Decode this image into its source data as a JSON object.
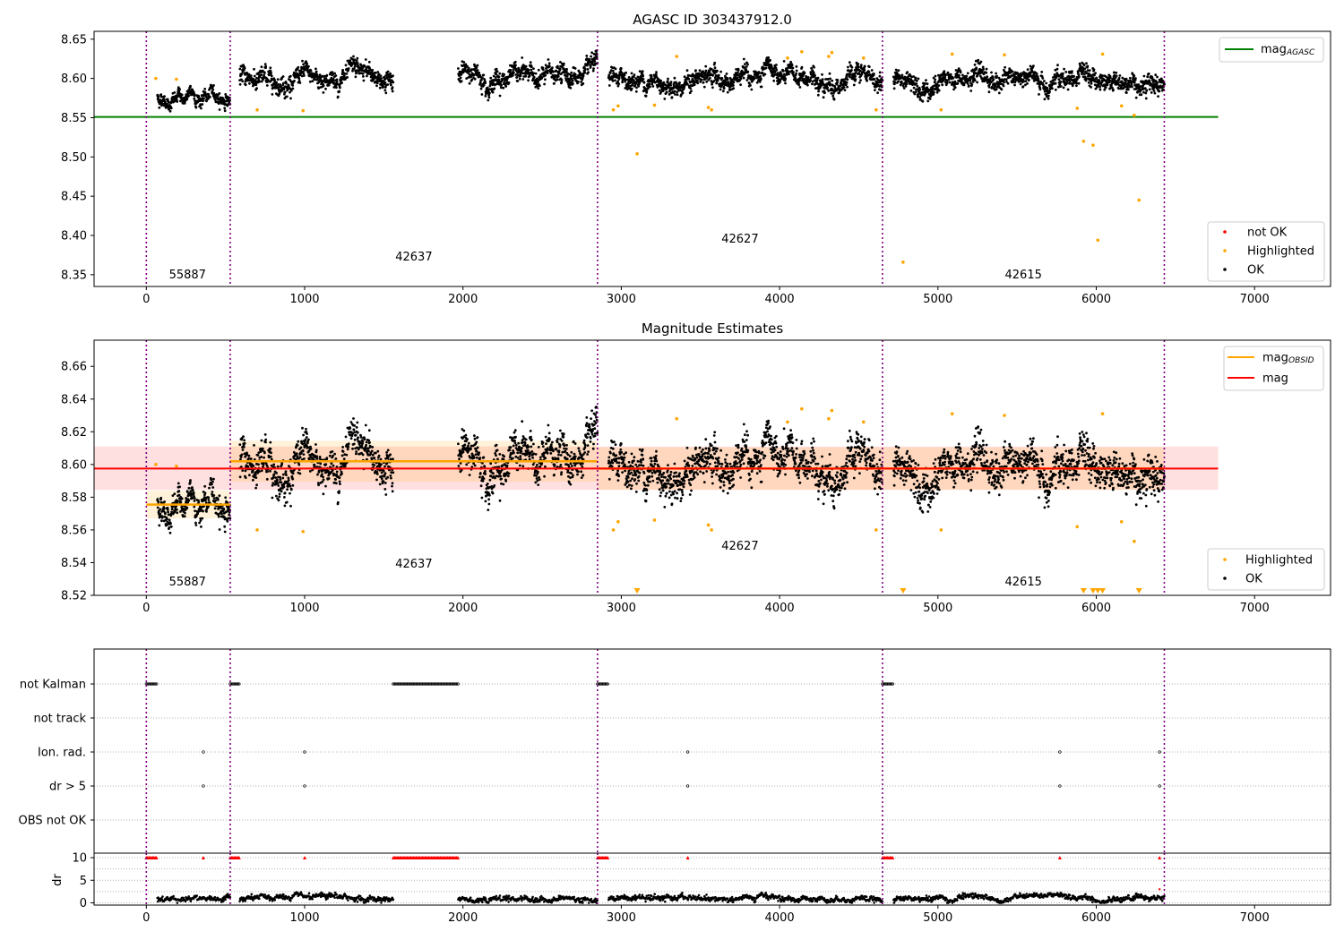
{
  "chart_data": [
    {
      "type": "scatter",
      "title": "AGASC ID 303437912.0",
      "xlim": [
        -330,
        7480
      ],
      "ylim": [
        8.335,
        8.66
      ],
      "x_ticks": [
        0,
        1000,
        2000,
        3000,
        4000,
        5000,
        6000,
        7000
      ],
      "y_ticks": [
        8.35,
        8.4,
        8.45,
        8.5,
        8.55,
        8.6,
        8.65
      ],
      "y_tick_format": 2,
      "reference_line": {
        "name": "mag_AGASC",
        "y": 8.551,
        "x": [
          -330,
          6770
        ],
        "color": "#008000"
      },
      "obsid_boundaries": [
        0,
        530,
        2850,
        4650,
        6430
      ],
      "obsid_labels": [
        {
          "text": "55887",
          "x": 260,
          "y": 8.345
        },
        {
          "text": "42637",
          "x": 1690,
          "y": 8.368
        },
        {
          "text": "42627",
          "x": 3750,
          "y": 8.391
        },
        {
          "text": "42615",
          "x": 5540,
          "y": 8.345
        }
      ],
      "legend": {
        "position": "upper-right",
        "line_entries": [
          {
            "label": "mag",
            "sub": "AGASC",
            "color": "#008000"
          }
        ],
        "marker_entries": [
          {
            "label": "not OK",
            "color": "#ff0000"
          },
          {
            "label": "Highlighted",
            "color": "#ffa500"
          },
          {
            "label": "OK",
            "color": "#000000"
          }
        ],
        "marker_position": "lower-right"
      },
      "series": [
        {
          "name": "OK",
          "color": "#000000",
          "note": "dense measurements"
        },
        {
          "name": "Highlighted",
          "color": "#ffa500",
          "points": [
            [
              60,
              8.6
            ],
            [
              190,
              8.599
            ],
            [
              700,
              8.56
            ],
            [
              990,
              8.559
            ],
            [
              2950,
              8.56
            ],
            [
              2980,
              8.565
            ],
            [
              3100,
              8.504
            ],
            [
              3210,
              8.566
            ],
            [
              3350,
              8.628
            ],
            [
              3550,
              8.563
            ],
            [
              3570,
              8.56
            ],
            [
              4050,
              8.626
            ],
            [
              4140,
              8.634
            ],
            [
              4310,
              8.628
            ],
            [
              4330,
              8.633
            ],
            [
              4530,
              8.626
            ],
            [
              4610,
              8.56
            ],
            [
              4780,
              8.366
            ],
            [
              5020,
              8.56
            ],
            [
              5090,
              8.631
            ],
            [
              5420,
              8.63
            ],
            [
              5880,
              8.562
            ],
            [
              5920,
              8.52
            ],
            [
              5980,
              8.515
            ],
            [
              6010,
              8.394
            ],
            [
              6040,
              8.631
            ],
            [
              6160,
              8.565
            ],
            [
              6240,
              8.553
            ],
            [
              6270,
              8.445
            ]
          ]
        }
      ]
    },
    {
      "type": "scatter",
      "title": "Magnitude Estimates",
      "xlim": [
        -330,
        7480
      ],
      "ylim": [
        8.52,
        8.676
      ],
      "x_ticks": [
        0,
        1000,
        2000,
        3000,
        4000,
        5000,
        6000,
        7000
      ],
      "y_ticks": [
        8.52,
        8.54,
        8.56,
        8.58,
        8.6,
        8.62,
        8.64,
        8.66
      ],
      "y_tick_format": 2,
      "mag": {
        "y": 8.5975,
        "band": [
          8.5845,
          8.611
        ],
        "x": [
          -330,
          6770
        ],
        "color": "#ff0000"
      },
      "mag_obsid": [
        {
          "x": [
            0,
            530
          ],
          "y": 8.5755,
          "band": [
            8.567,
            8.584
          ]
        },
        {
          "x": [
            530,
            2850
          ],
          "y": 8.602,
          "band": [
            8.5895,
            8.6145
          ]
        },
        {
          "x": [
            2850,
            4650
          ],
          "y": 8.5975,
          "band": [
            8.5845,
            8.6105
          ]
        },
        {
          "x": [
            4650,
            6430
          ],
          "y": 8.5975,
          "band": [
            8.5845,
            8.6105
          ]
        }
      ],
      "obsid_boundaries": [
        0,
        530,
        2850,
        4650,
        6430
      ],
      "obsid_labels": [
        {
          "text": "55887",
          "x": 260,
          "y": 8.526
        },
        {
          "text": "42637",
          "x": 1690,
          "y": 8.537
        },
        {
          "text": "42627",
          "x": 3750,
          "y": 8.548
        },
        {
          "text": "42615",
          "x": 5540,
          "y": 8.526
        }
      ],
      "clipped_markers_x": [
        3100,
        4780,
        5920,
        5980,
        6010,
        6040,
        6270
      ],
      "legend": {
        "position": "upper-right",
        "line_entries": [
          {
            "label": "mag",
            "sub": "OBSID",
            "color": "#ffa500"
          },
          {
            "label": "mag",
            "sub": "",
            "color": "#ff0000"
          }
        ],
        "marker_entries": [
          {
            "label": "Highlighted",
            "color": "#ffa500"
          },
          {
            "label": "OK",
            "color": "#000000"
          }
        ],
        "marker_position": "lower-right"
      }
    },
    {
      "type": "scatter",
      "xlim": [
        -330,
        7480
      ],
      "categories": [
        "not Kalman",
        "not track",
        "Ion. rad.",
        "dr > 5",
        "OBS not OK"
      ],
      "flags": {
        "not Kalman": [
          [
            0,
            70
          ],
          [
            530,
            590
          ],
          [
            1560,
            1970
          ],
          [
            2850,
            2920
          ],
          [
            4650,
            4720
          ]
        ],
        "not track": [],
        "Ion. rad.": [
          360,
          1000,
          3420,
          5770,
          6400
        ],
        "dr > 5": [
          360,
          1000,
          3420,
          5770,
          6400
        ],
        "OBS not OK": []
      },
      "obsid_boundaries": [
        0,
        530,
        2850,
        4650,
        6430
      ]
    },
    {
      "type": "scatter",
      "ylabel": "dr",
      "xlim": [
        -330,
        7480
      ],
      "ylim": [
        -0.5,
        11
      ],
      "x_ticks": [
        0,
        1000,
        2000,
        3000,
        4000,
        5000,
        6000,
        7000
      ],
      "y_ticks": [
        0,
        5,
        10
      ],
      "y_tick_format": 0,
      "clipped_y": 10,
      "clipped_x_ranges": [
        [
          0,
          70
        ],
        [
          530,
          590
        ],
        [
          1560,
          1970
        ],
        [
          2850,
          2920
        ],
        [
          4650,
          4720
        ]
      ],
      "clipped_x_points": [
        360,
        1000,
        3420,
        5770,
        6400
      ],
      "obsid_boundaries": [
        0,
        530,
        2850,
        4650,
        6430
      ]
    }
  ]
}
